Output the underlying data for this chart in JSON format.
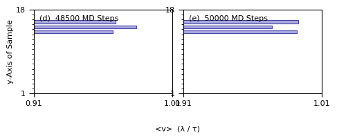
{
  "left_title": "(d)  48500 MD Steps",
  "right_title": "(e)  50000 MD Steps",
  "xlabel": "<v>  (λ / τ)",
  "ylabel": "y-Axis of Sample",
  "xlim": [
    0.91,
    1.01
  ],
  "ylim": [
    1,
    18
  ],
  "yticks": [
    1,
    18
  ],
  "xticks": [
    0.91,
    1.01
  ],
  "bar_color": "#aaaadd",
  "bar_edgecolor": "#4444aa",
  "left_bars": [
    {
      "y": 15.5,
      "xstart": 0.91,
      "xend": 0.969
    },
    {
      "y": 14.5,
      "xstart": 0.91,
      "xend": 0.984
    },
    {
      "y": 13.5,
      "xstart": 0.91,
      "xend": 0.967
    }
  ],
  "right_bars": [
    {
      "y": 15.5,
      "xstart": 0.91,
      "xend": 0.993
    },
    {
      "y": 14.5,
      "xstart": 0.91,
      "xend": 0.974
    },
    {
      "y": 13.5,
      "xstart": 0.91,
      "xend": 0.992
    }
  ],
  "bar_height": 0.65,
  "tick_fontsize": 8,
  "label_fontsize": 8,
  "title_fontsize": 8,
  "bg_color": "#ffffff"
}
